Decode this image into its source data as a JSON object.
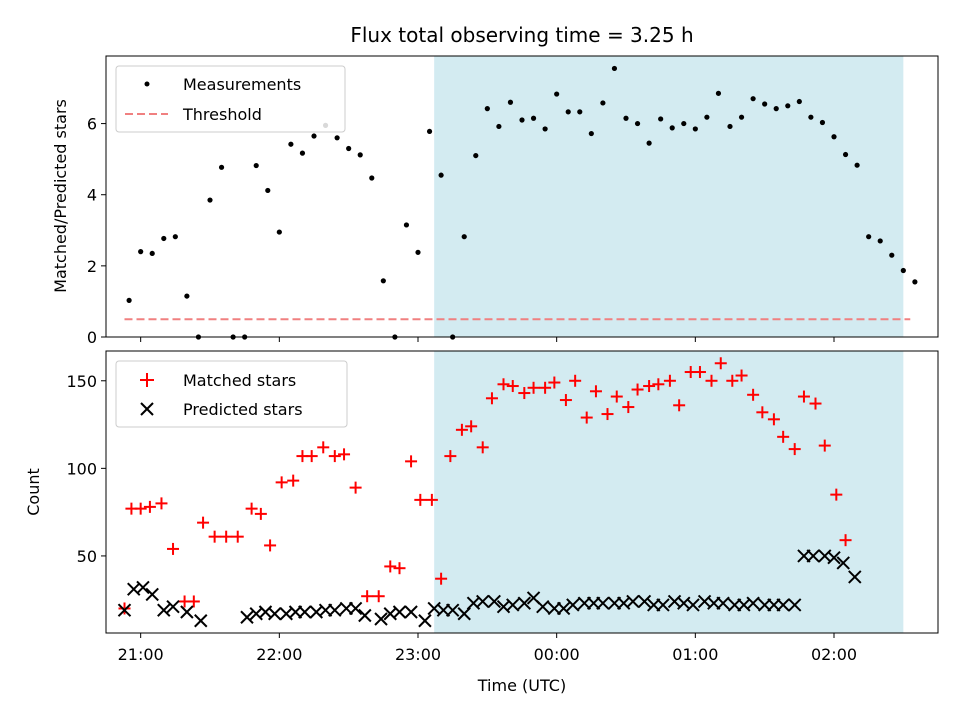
{
  "chart_data": [
    {
      "type": "scatter",
      "title": "Flux total observing time = 3.25 h",
      "ylabel": "Matched/Predicted stars",
      "xlabel": "",
      "ylim": [
        0,
        7.9
      ],
      "yticks": [
        0,
        2,
        4,
        6
      ],
      "xlim": [
        "20:45",
        "02:45"
      ],
      "legend": "top-left",
      "shaded_region": {
        "x0": "23:07",
        "x1": "02:30",
        "color": "#d3ebf1"
      },
      "series": [
        {
          "name": "Measurements",
          "color": "#000000",
          "marker": "dot",
          "points": [
            [
              "20:55",
              1.03
            ],
            [
              "21:00",
              2.4
            ],
            [
              "21:05",
              2.35
            ],
            [
              "21:10",
              2.77
            ],
            [
              "21:15",
              2.82
            ],
            [
              "21:20",
              1.15
            ],
            [
              "21:25",
              0.0
            ],
            [
              "21:30",
              3.85
            ],
            [
              "21:35",
              4.77
            ],
            [
              "21:40",
              0.0
            ],
            [
              "21:45",
              0.0
            ],
            [
              "21:50",
              4.82
            ],
            [
              "21:55",
              4.12
            ],
            [
              "22:00",
              2.95
            ],
            [
              "22:05",
              5.42
            ],
            [
              "22:10",
              5.17
            ],
            [
              "22:15",
              5.65
            ],
            [
              "22:20",
              5.95
            ],
            [
              "22:25",
              5.6
            ],
            [
              "22:30",
              5.3
            ],
            [
              "22:35",
              5.12
            ],
            [
              "22:40",
              4.47
            ],
            [
              "22:45",
              1.58
            ],
            [
              "22:50",
              0.0
            ],
            [
              "22:55",
              3.15
            ],
            [
              "23:00",
              2.38
            ],
            [
              "23:05",
              5.78
            ],
            [
              "23:10",
              4.55
            ],
            [
              "23:15",
              0.0
            ],
            [
              "23:20",
              2.82
            ],
            [
              "23:25",
              5.1
            ],
            [
              "23:30",
              6.42
            ],
            [
              "23:35",
              5.92
            ],
            [
              "23:40",
              6.6
            ],
            [
              "23:45",
              6.1
            ],
            [
              "23:50",
              6.15
            ],
            [
              "23:55",
              5.85
            ],
            [
              "00:00",
              6.83
            ],
            [
              "00:05",
              6.33
            ],
            [
              "00:10",
              6.33
            ],
            [
              "00:15",
              5.72
            ],
            [
              "00:20",
              6.58
            ],
            [
              "00:25",
              7.55
            ],
            [
              "00:30",
              6.15
            ],
            [
              "00:35",
              6.0
            ],
            [
              "00:40",
              5.45
            ],
            [
              "00:45",
              6.13
            ],
            [
              "00:50",
              5.88
            ],
            [
              "00:55",
              6.0
            ],
            [
              "01:00",
              5.85
            ],
            [
              "01:05",
              6.18
            ],
            [
              "01:10",
              6.85
            ],
            [
              "01:15",
              5.92
            ],
            [
              "01:20",
              6.18
            ],
            [
              "01:25",
              6.7
            ],
            [
              "01:30",
              6.55
            ],
            [
              "01:35",
              6.42
            ],
            [
              "01:40",
              6.5
            ],
            [
              "01:45",
              6.62
            ],
            [
              "01:50",
              6.18
            ],
            [
              "01:55",
              6.03
            ],
            [
              "02:00",
              5.63
            ],
            [
              "02:05",
              5.13
            ],
            [
              "02:10",
              4.83
            ],
            [
              "02:15",
              2.82
            ],
            [
              "02:20",
              2.7
            ],
            [
              "02:25",
              2.3
            ],
            [
              "02:30",
              1.87
            ],
            [
              "02:35",
              1.55
            ]
          ]
        },
        {
          "name": "Threshold",
          "color": "#f08080",
          "style": "dashed-line",
          "points": [
            [
              "20:53",
              0.5
            ],
            [
              "02:33",
              0.5
            ]
          ]
        }
      ],
      "xtick_labels": [
        "21:00",
        "22:00",
        "23:00",
        "00:00",
        "01:00",
        "02:00"
      ]
    },
    {
      "type": "scatter",
      "title": "",
      "ylabel": "Count",
      "xlabel": "Time (UTC)",
      "ylim": [
        6,
        167
      ],
      "yticks": [
        50,
        100,
        150
      ],
      "xlim": [
        "20:45",
        "02:45"
      ],
      "legend": "top-left",
      "shaded_region": {
        "x0": "23:07",
        "x1": "02:30",
        "color": "#d3ebf1"
      },
      "series": [
        {
          "name": "Matched stars",
          "color": "#ff0000",
          "marker": "plus",
          "points": [
            [
              "20:53",
              20
            ],
            [
              "20:56",
              77
            ],
            [
              "21:00",
              77
            ],
            [
              "21:04",
              78
            ],
            [
              "21:09",
              80
            ],
            [
              "21:14",
              54
            ],
            [
              "21:19",
              24
            ],
            [
              "21:23",
              24
            ],
            [
              "21:27",
              69
            ],
            [
              "21:32",
              61
            ],
            [
              "21:37",
              61
            ],
            [
              "21:42",
              61
            ],
            [
              "21:48",
              77
            ],
            [
              "21:52",
              74
            ],
            [
              "21:56",
              56
            ],
            [
              "22:01",
              92
            ],
            [
              "22:06",
              93
            ],
            [
              "22:10",
              107
            ],
            [
              "22:14",
              107
            ],
            [
              "22:19",
              112
            ],
            [
              "22:24",
              107
            ],
            [
              "22:28",
              108
            ],
            [
              "22:33",
              89
            ],
            [
              "22:38",
              27
            ],
            [
              "22:43",
              27
            ],
            [
              "22:48",
              44
            ],
            [
              "22:52",
              43
            ],
            [
              "22:57",
              104
            ],
            [
              "23:01",
              82
            ],
            [
              "23:06",
              82
            ],
            [
              "23:10",
              37
            ],
            [
              "23:14",
              107
            ],
            [
              "23:19",
              122
            ],
            [
              "23:23",
              124
            ],
            [
              "23:28",
              112
            ],
            [
              "23:32",
              140
            ],
            [
              "23:37",
              148
            ],
            [
              "23:41",
              147
            ],
            [
              "23:46",
              143
            ],
            [
              "23:50",
              146
            ],
            [
              "23:55",
              146
            ],
            [
              "23:59",
              149
            ],
            [
              "00:04",
              139
            ],
            [
              "00:08",
              150
            ],
            [
              "00:13",
              129
            ],
            [
              "00:17",
              144
            ],
            [
              "00:22",
              131
            ],
            [
              "00:26",
              141
            ],
            [
              "00:31",
              135
            ],
            [
              "00:35",
              145
            ],
            [
              "00:40",
              147
            ],
            [
              "00:44",
              148
            ],
            [
              "00:49",
              150
            ],
            [
              "00:53",
              136
            ],
            [
              "00:58",
              155
            ],
            [
              "01:02",
              155
            ],
            [
              "01:07",
              150
            ],
            [
              "01:11",
              160
            ],
            [
              "01:16",
              150
            ],
            [
              "01:20",
              153
            ],
            [
              "01:25",
              142
            ],
            [
              "01:29",
              132
            ],
            [
              "01:34",
              128
            ],
            [
              "01:38",
              118
            ],
            [
              "01:43",
              111
            ],
            [
              "01:47",
              141
            ],
            [
              "01:52",
              137
            ],
            [
              "01:56",
              113
            ],
            [
              "02:01",
              85
            ],
            [
              "02:05",
              59
            ]
          ]
        },
        {
          "name": "Predicted stars",
          "color": "#000000",
          "marker": "x",
          "points": [
            [
              "20:53",
              19
            ],
            [
              "20:57",
              31
            ],
            [
              "21:01",
              32
            ],
            [
              "21:05",
              28
            ],
            [
              "21:10",
              19
            ],
            [
              "21:14",
              21
            ],
            [
              "21:20",
              18
            ],
            [
              "21:26",
              13
            ],
            [
              "21:46",
              15
            ],
            [
              "21:50",
              17
            ],
            [
              "21:54",
              18
            ],
            [
              "21:58",
              17
            ],
            [
              "22:03",
              17
            ],
            [
              "22:07",
              18
            ],
            [
              "22:11",
              18
            ],
            [
              "22:16",
              18
            ],
            [
              "22:20",
              19
            ],
            [
              "22:24",
              19
            ],
            [
              "22:29",
              20
            ],
            [
              "22:33",
              20
            ],
            [
              "22:37",
              16
            ],
            [
              "22:44",
              14
            ],
            [
              "22:48",
              17
            ],
            [
              "22:52",
              18
            ],
            [
              "22:57",
              18
            ],
            [
              "23:03",
              13
            ],
            [
              "23:07",
              20
            ],
            [
              "23:11",
              19
            ],
            [
              "23:15",
              19
            ],
            [
              "23:20",
              17
            ],
            [
              "23:24",
              23
            ],
            [
              "23:28",
              24
            ],
            [
              "23:33",
              24
            ],
            [
              "23:37",
              21
            ],
            [
              "23:41",
              22
            ],
            [
              "23:46",
              23
            ],
            [
              "23:50",
              26
            ],
            [
              "23:54",
              21
            ],
            [
              "23:59",
              20
            ],
            [
              "00:03",
              20
            ],
            [
              "00:07",
              22
            ],
            [
              "00:12",
              23
            ],
            [
              "00:16",
              23
            ],
            [
              "00:20",
              23
            ],
            [
              "00:25",
              23
            ],
            [
              "00:29",
              23
            ],
            [
              "00:33",
              24
            ],
            [
              "00:38",
              24
            ],
            [
              "00:42",
              22
            ],
            [
              "00:46",
              22
            ],
            [
              "00:51",
              24
            ],
            [
              "00:55",
              23
            ],
            [
              "00:59",
              22
            ],
            [
              "01:04",
              24
            ],
            [
              "01:08",
              23
            ],
            [
              "01:12",
              23
            ],
            [
              "01:17",
              22
            ],
            [
              "01:21",
              22
            ],
            [
              "01:25",
              23
            ],
            [
              "01:30",
              22
            ],
            [
              "01:34",
              22
            ],
            [
              "01:38",
              22
            ],
            [
              "01:43",
              22
            ],
            [
              "01:47",
              50
            ],
            [
              "01:51",
              50
            ],
            [
              "01:56",
              50
            ],
            [
              "02:00",
              49
            ],
            [
              "02:04",
              46
            ],
            [
              "02:09",
              38
            ]
          ]
        }
      ],
      "xtick_labels": [
        "21:00",
        "22:00",
        "23:00",
        "00:00",
        "01:00",
        "02:00"
      ]
    }
  ]
}
